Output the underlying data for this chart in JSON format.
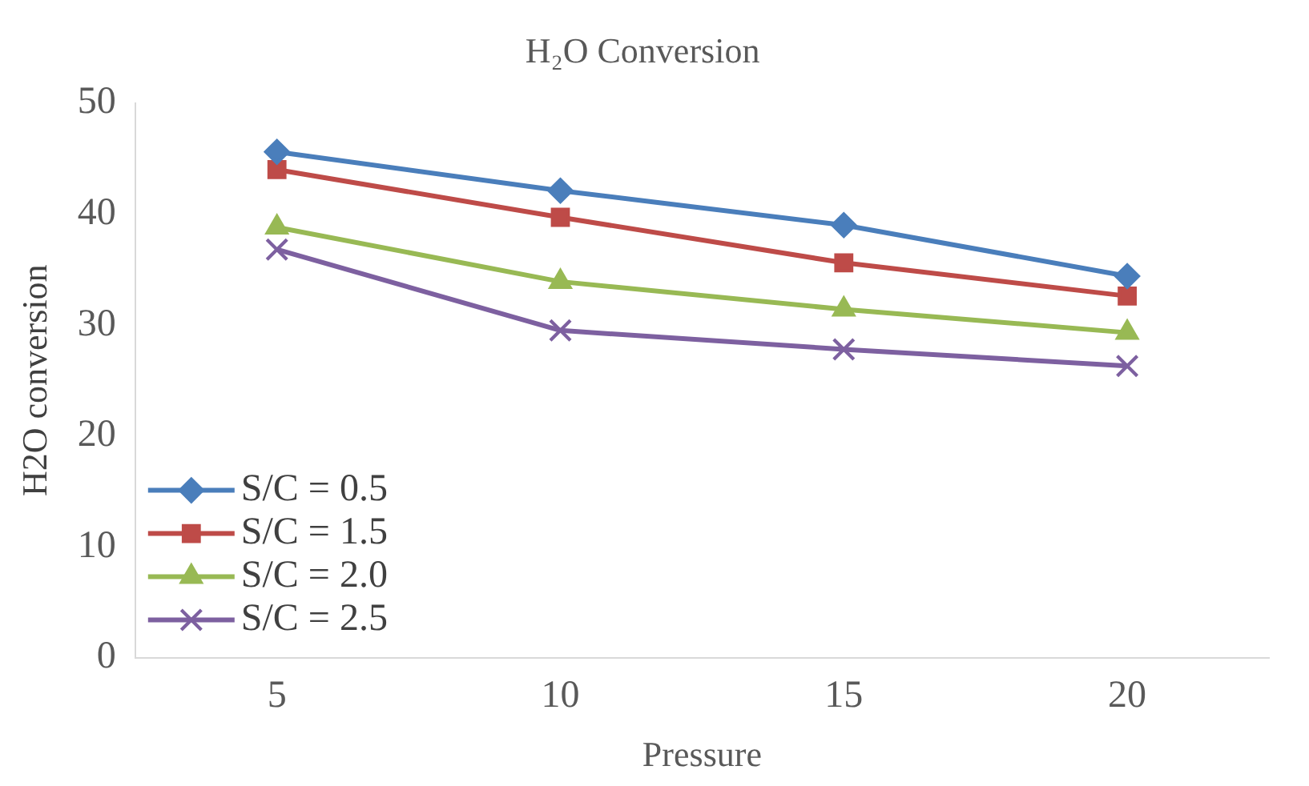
{
  "chart_data": {
    "type": "line",
    "title": "H₂O Conversion",
    "xlabel": "Pressure",
    "ylabel": "H2O conversion",
    "categories": [
      "5",
      "10",
      "15",
      "20"
    ],
    "ylim": [
      0,
      50
    ],
    "yticks": [
      0,
      10,
      20,
      30,
      40,
      50
    ],
    "grid": false,
    "legend": "bottom left",
    "series": [
      {
        "name": "S/C = 0.5",
        "color": "#4a7ebb",
        "marker": "diamond",
        "values": [
          45.6,
          42.1,
          39.0,
          34.4
        ]
      },
      {
        "name": "S/C = 1.5",
        "color": "#be4b48",
        "marker": "square",
        "values": [
          44.0,
          39.7,
          35.6,
          32.6
        ]
      },
      {
        "name": "S/C = 2.0",
        "color": "#98b954",
        "marker": "triangle",
        "values": [
          38.8,
          33.9,
          31.4,
          29.3
        ]
      },
      {
        "name": "S/C = 2.5",
        "color": "#7d60a0",
        "marker": "cross",
        "values": [
          36.8,
          29.5,
          27.8,
          26.3
        ]
      }
    ]
  }
}
